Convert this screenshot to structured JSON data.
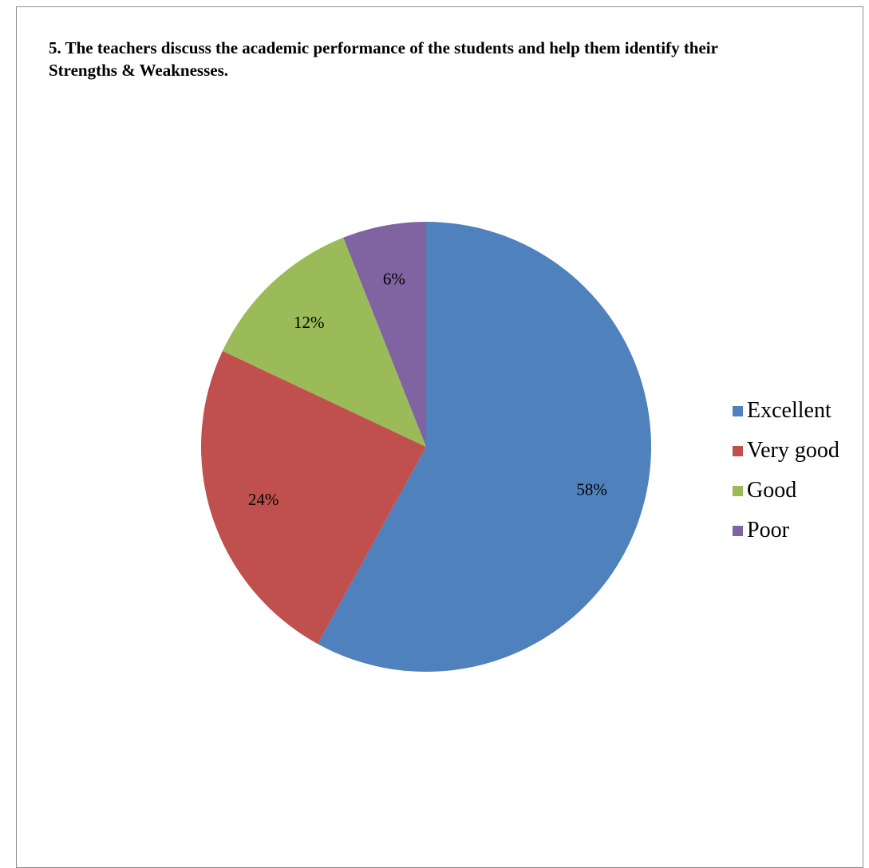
{
  "chart_data": {
    "type": "pie",
    "title": "5. The teachers discuss the academic performance of the students and help them identify their Strengths & Weaknesses.",
    "categories": [
      "Excellent",
      "Very good",
      "Good",
      "Poor"
    ],
    "values": [
      58,
      24,
      12,
      6
    ],
    "data_labels": [
      "58%",
      "24%",
      "12%",
      "6%"
    ],
    "colors": [
      "#4f81bd",
      "#c0504d",
      "#9bbb59",
      "#8064a2"
    ],
    "legend_position": "right",
    "start_angle": "12 o'clock, clockwise"
  }
}
